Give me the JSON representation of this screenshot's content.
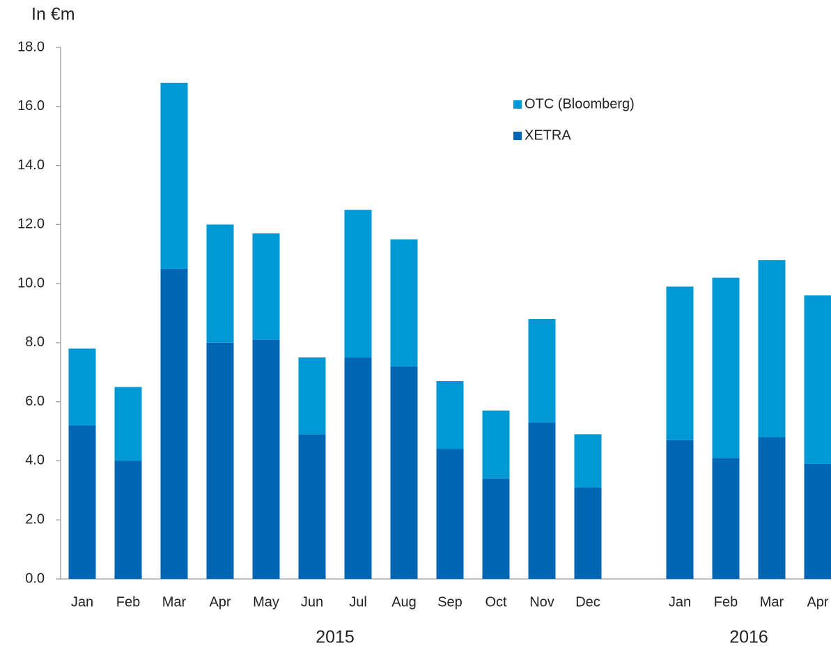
{
  "chart_data": {
    "type": "stacked_bar",
    "y_label": "In €m",
    "categories": [
      "Jan",
      "Feb",
      "Mar",
      "Apr",
      "May",
      "Jun",
      "Jul",
      "Aug",
      "Sep",
      "Oct",
      "Nov",
      "Dec",
      null,
      "Jan",
      "Feb",
      "Mar",
      "Apr"
    ],
    "year_labels": [
      "2015",
      "2016"
    ],
    "series": [
      {
        "name": "XETRA",
        "color": "#0066b3",
        "values": [
          5.2,
          4.0,
          10.5,
          8.0,
          8.1,
          4.9,
          7.5,
          7.2,
          4.4,
          3.4,
          5.3,
          3.1,
          null,
          4.7,
          4.1,
          4.8,
          3.9
        ]
      },
      {
        "name": "OTC (Bloomberg)",
        "color": "#0099d6",
        "values": [
          2.6,
          2.5,
          6.3,
          4.0,
          3.6,
          2.6,
          5.0,
          4.3,
          2.3,
          2.3,
          3.5,
          1.8,
          null,
          5.2,
          6.1,
          6.0,
          5.7
        ]
      }
    ],
    "ylim": [
      0,
      18
    ],
    "yticks": [
      {
        "value": 0,
        "label": "0.0"
      },
      {
        "value": 2,
        "label": "2.0"
      },
      {
        "value": 4,
        "label": "4.0"
      },
      {
        "value": 6,
        "label": "6.0"
      },
      {
        "value": 8,
        "label": "8.0"
      },
      {
        "value": 10,
        "label": "10.0"
      },
      {
        "value": 12,
        "label": "12.0"
      },
      {
        "value": 14,
        "label": "14.0"
      },
      {
        "value": 16,
        "label": "16.0"
      },
      {
        "value": 18,
        "label": "18.0"
      }
    ],
    "legend": "upper right"
  }
}
